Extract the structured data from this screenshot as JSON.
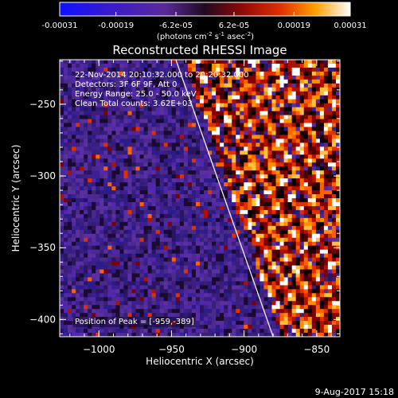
{
  "colorbar": {
    "tick_labels": [
      "-0.00031",
      "-0.00019",
      "-6.2e-05",
      "6.2e-05",
      "0.00019",
      "0.00031"
    ],
    "tick_values": [
      -0.00031,
      -0.00019,
      -6.2e-05,
      6.2e-05,
      0.00019,
      0.00031
    ],
    "units": {
      "prefix": "(photons cm",
      "exp1": "-2",
      "mid": " s",
      "exp2": "-1",
      "mid2": " asec",
      "exp3": "-2",
      "suffix": ")"
    },
    "range": [
      -0.00031,
      0.00031
    ]
  },
  "chart_data": {
    "type": "heatmap",
    "title": "Reconstructed RHESSI Image",
    "xlabel": "Heliocentric X (arcsec)",
    "ylabel": "Heliocentric Y (arcsec)",
    "xlim": [
      -1027,
      -834
    ],
    "ylim": [
      -412,
      -219
    ],
    "x_ticks": [
      -1000,
      -950,
      -900,
      -850
    ],
    "y_ticks": [
      -400,
      -350,
      -300,
      -250
    ],
    "x_tick_labels": [
      "−1000",
      "−950",
      "−900",
      "−850"
    ],
    "y_tick_labels": [
      "−400",
      "−350",
      "−300",
      "−250"
    ],
    "annotations": [
      "22-Nov-2014 20:10:32.000 to 20:20:32.000",
      "Detectors: 3F 6F 9F, Att 0",
      "Energy Range: 25.0 - 50.0 keV",
      "Clean     Total counts: 3.62E+03"
    ],
    "peak_label": "Position of Peak = [-959,-389]",
    "peak_position": [
      -959,
      -389
    ],
    "limb_line": [
      [
        -947,
        -219
      ],
      [
        -880,
        -412
      ]
    ],
    "grid": false
  },
  "footer": {
    "date": "9-Aug-2017 15:18"
  }
}
